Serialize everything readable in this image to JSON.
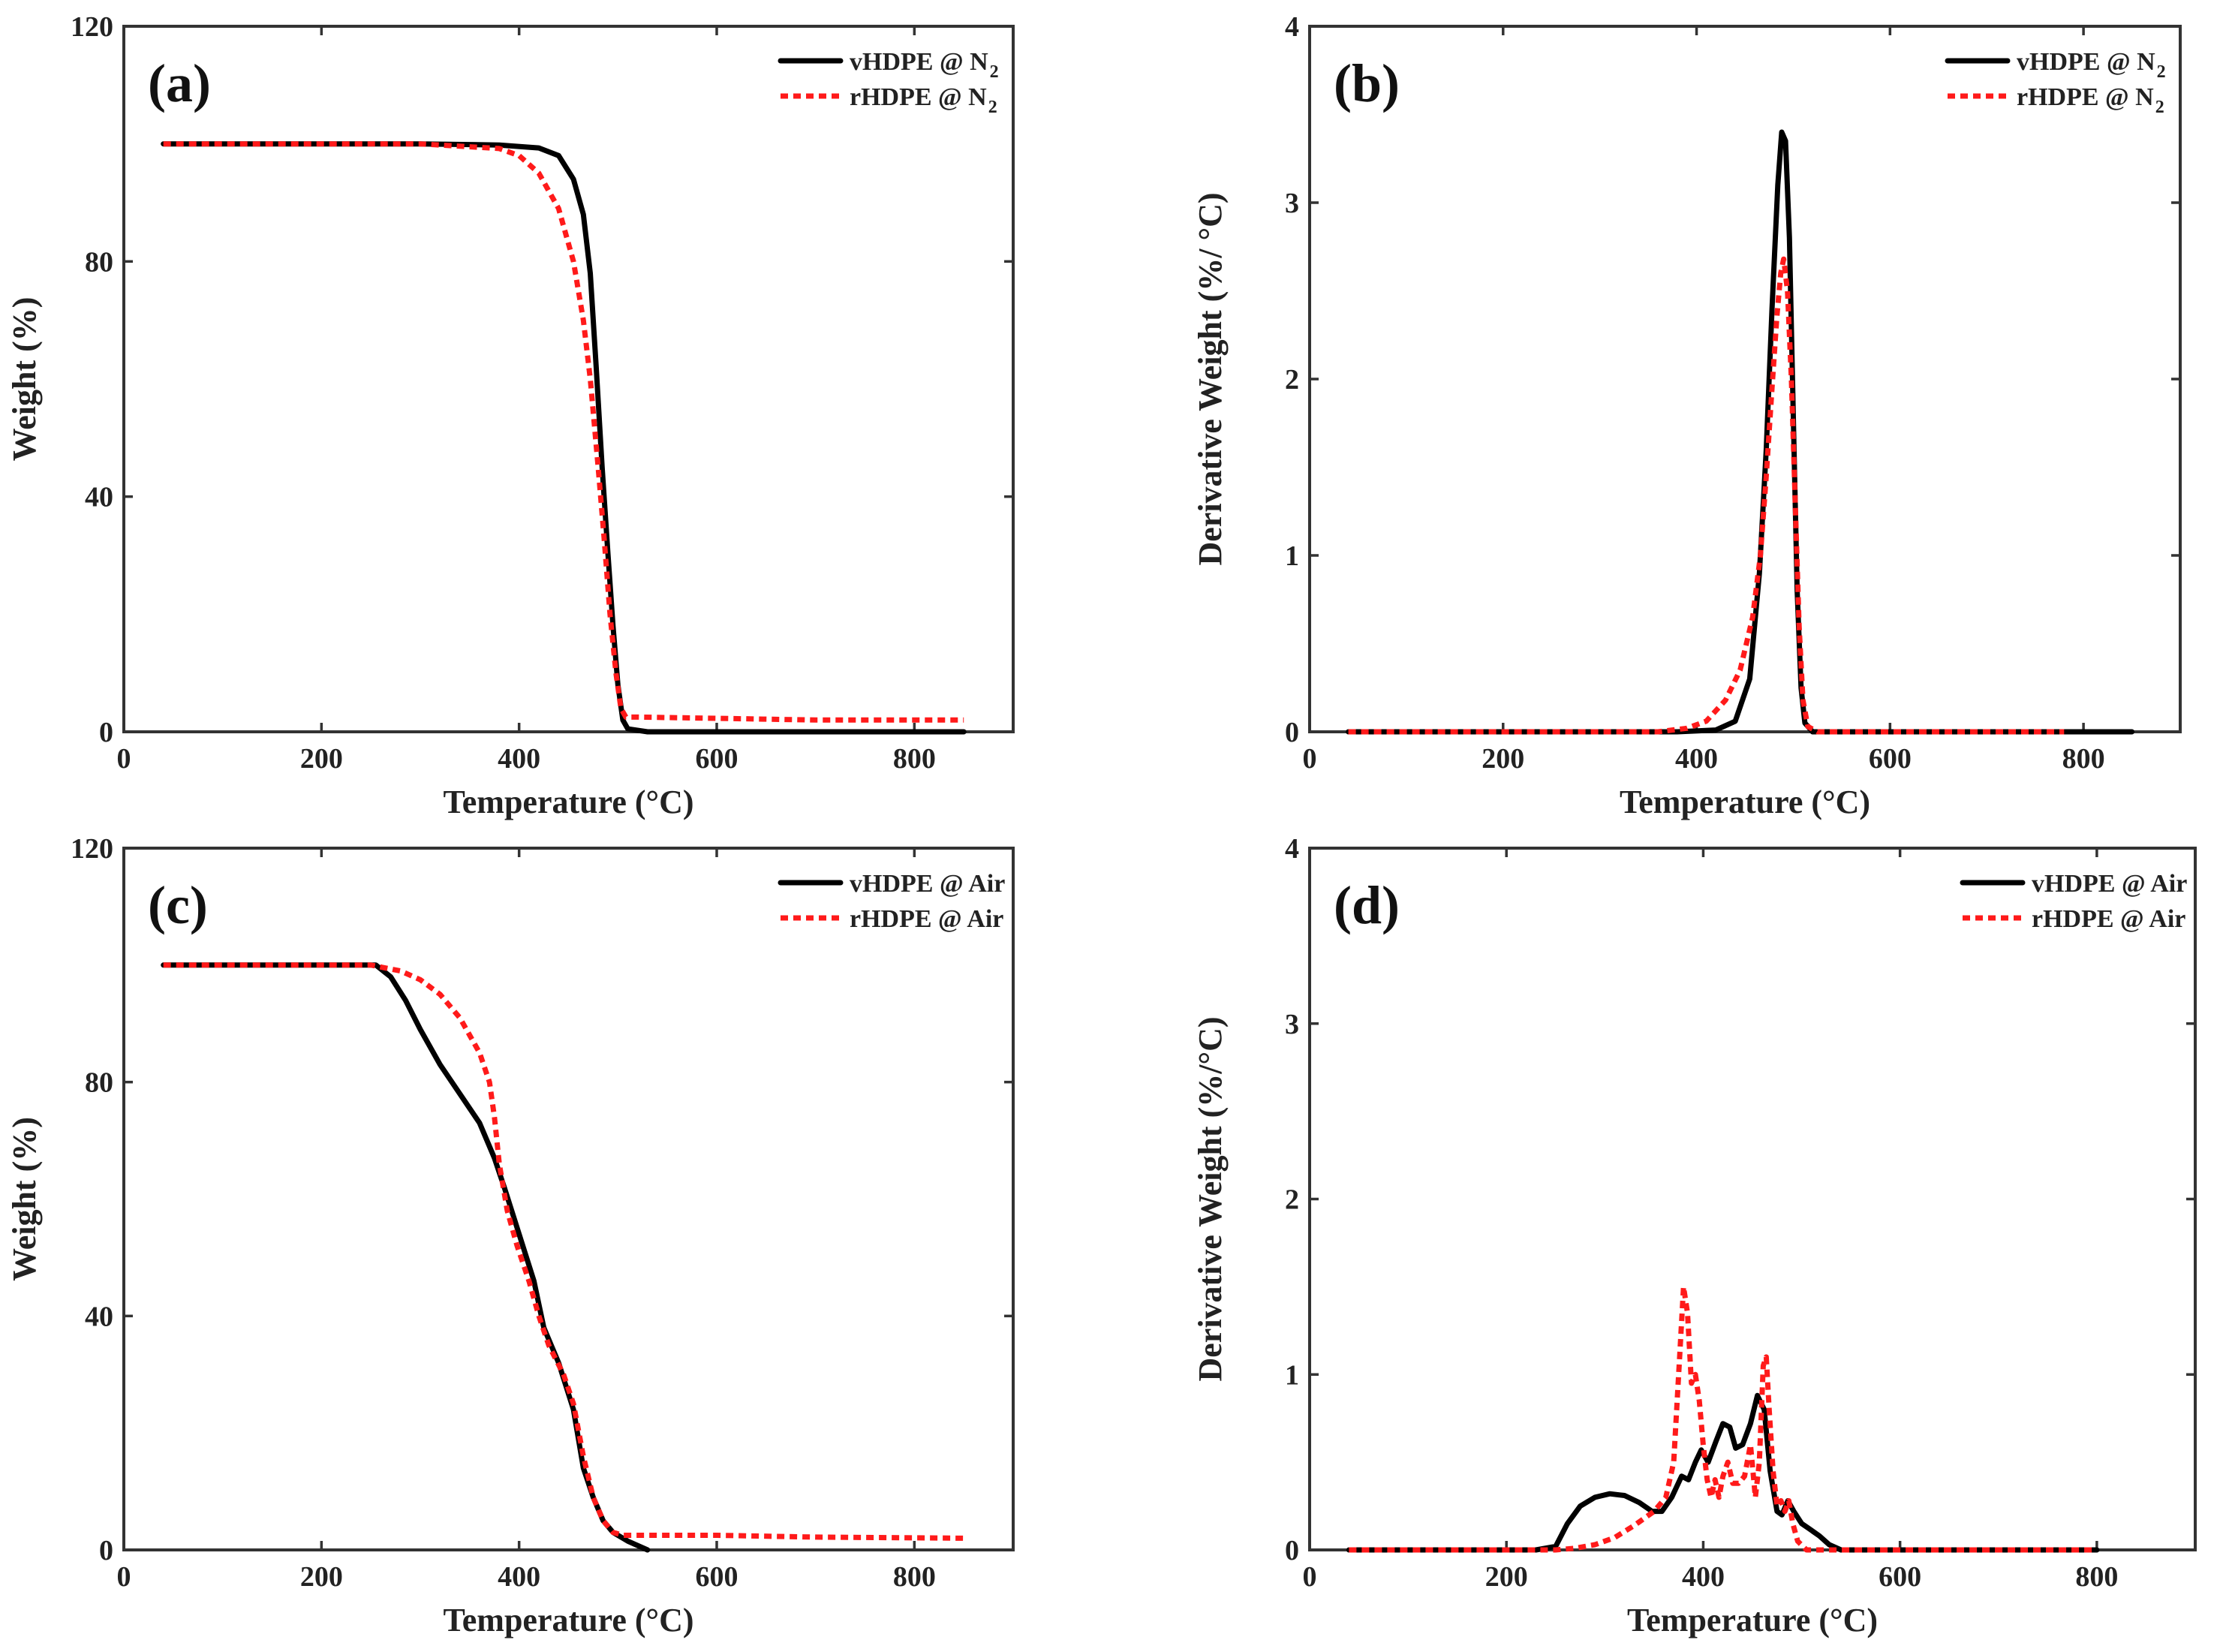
{
  "colors": {
    "series1": "#000000",
    "series2": "#ff1a1a",
    "axis": "#333333"
  },
  "chart_data": [
    {
      "id": "a",
      "type": "line",
      "panel_label": "(a)",
      "xlabel": "Temperature (°C)",
      "ylabel": "Weight (%)",
      "xlim": [
        0,
        900
      ],
      "ylim": [
        0,
        120
      ],
      "xticks": [
        0,
        200,
        400,
        600,
        800
      ],
      "yticks": [
        0,
        40,
        80,
        120
      ],
      "legend_position": "top-right",
      "series": [
        {
          "name": "vHDPE @ N",
          "name_sub": "2",
          "style": "solid",
          "points": [
            [
              40,
              100
            ],
            [
              100,
              100
            ],
            [
              200,
              100
            ],
            [
              300,
              100
            ],
            [
              380,
              99.8
            ],
            [
              420,
              99.3
            ],
            [
              440,
              98
            ],
            [
              455,
              94
            ],
            [
              465,
              88
            ],
            [
              472,
              78
            ],
            [
              478,
              62
            ],
            [
              484,
              45
            ],
            [
              490,
              30
            ],
            [
              495,
              18
            ],
            [
              500,
              8
            ],
            [
              505,
              2
            ],
            [
              510,
              0.5
            ],
            [
              530,
              0
            ],
            [
              850,
              0
            ]
          ]
        },
        {
          "name": "rHDPE @ N",
          "name_sub": "2",
          "style": "dotted",
          "points": [
            [
              40,
              100
            ],
            [
              100,
              100
            ],
            [
              200,
              100
            ],
            [
              300,
              100
            ],
            [
              380,
              99.2
            ],
            [
              400,
              98
            ],
            [
              420,
              95
            ],
            [
              440,
              89
            ],
            [
              455,
              80
            ],
            [
              465,
              70
            ],
            [
              472,
              60
            ],
            [
              480,
              45
            ],
            [
              486,
              33
            ],
            [
              492,
              20
            ],
            [
              498,
              10
            ],
            [
              503,
              4
            ],
            [
              508,
              2.5
            ],
            [
              520,
              2.5
            ],
            [
              600,
              2.3
            ],
            [
              700,
              2
            ],
            [
              850,
              2
            ]
          ]
        }
      ]
    },
    {
      "id": "b",
      "type": "line",
      "panel_label": "(b)",
      "xlabel": "Temperature (°C)",
      "ylabel": "Derivative Weight (%/ °C)",
      "xlim": [
        0,
        900
      ],
      "ylim": [
        0,
        4
      ],
      "xticks": [
        0,
        200,
        400,
        600,
        800
      ],
      "yticks": [
        0,
        1,
        2,
        3,
        4
      ],
      "legend_position": "top-right",
      "series": [
        {
          "name": "vHDPE @ N",
          "name_sub": "2",
          "style": "solid",
          "points": [
            [
              40,
              0
            ],
            [
              380,
              0
            ],
            [
              420,
              0.01
            ],
            [
              440,
              0.06
            ],
            [
              455,
              0.3
            ],
            [
              465,
              0.9
            ],
            [
              472,
              1.6
            ],
            [
              478,
              2.4
            ],
            [
              484,
              3.1
            ],
            [
              488,
              3.4
            ],
            [
              492,
              3.35
            ],
            [
              496,
              2.8
            ],
            [
              500,
              1.8
            ],
            [
              504,
              0.8
            ],
            [
              508,
              0.25
            ],
            [
              512,
              0.05
            ],
            [
              520,
              0
            ],
            [
              850,
              0
            ]
          ]
        },
        {
          "name": "rHDPE @ N",
          "name_sub": "2",
          "style": "dotted",
          "points": [
            [
              40,
              0
            ],
            [
              360,
              0
            ],
            [
              390,
              0.02
            ],
            [
              410,
              0.06
            ],
            [
              430,
              0.18
            ],
            [
              445,
              0.35
            ],
            [
              458,
              0.65
            ],
            [
              466,
              1.0
            ],
            [
              472,
              1.45
            ],
            [
              478,
              1.95
            ],
            [
              483,
              2.35
            ],
            [
              487,
              2.6
            ],
            [
              490,
              2.68
            ],
            [
              494,
              2.5
            ],
            [
              498,
              2.0
            ],
            [
              502,
              1.3
            ],
            [
              506,
              0.6
            ],
            [
              510,
              0.18
            ],
            [
              515,
              0.03
            ],
            [
              525,
              0
            ],
            [
              780,
              0
            ]
          ]
        }
      ]
    },
    {
      "id": "c",
      "type": "line",
      "panel_label": "(c)",
      "xlabel": "Temperature (°C)",
      "ylabel": "Weight (%)",
      "xlim": [
        0,
        900
      ],
      "ylim": [
        0,
        120
      ],
      "xticks": [
        0,
        200,
        400,
        600,
        800
      ],
      "yticks": [
        0,
        40,
        80,
        120
      ],
      "legend_position": "top-right",
      "series": [
        {
          "name": "vHDPE @ Air",
          "name_sub": "",
          "style": "solid",
          "points": [
            [
              40,
              100
            ],
            [
              150,
              100
            ],
            [
              240,
              100
            ],
            [
              255,
              100
            ],
            [
              270,
              98
            ],
            [
              285,
              94
            ],
            [
              300,
              89
            ],
            [
              320,
              83
            ],
            [
              340,
              78
            ],
            [
              360,
              73
            ],
            [
              375,
              67
            ],
            [
              385,
              62
            ],
            [
              400,
              54
            ],
            [
              415,
              46
            ],
            [
              425,
              38
            ],
            [
              440,
              32
            ],
            [
              455,
              24
            ],
            [
              465,
              14
            ],
            [
              475,
              9
            ],
            [
              485,
              5
            ],
            [
              495,
              3
            ],
            [
              510,
              1.5
            ],
            [
              530,
              0
            ]
          ]
        },
        {
          "name": "rHDPE @ Air",
          "name_sub": "",
          "style": "dotted",
          "points": [
            [
              40,
              100
            ],
            [
              150,
              100
            ],
            [
              250,
              100
            ],
            [
              280,
              99
            ],
            [
              300,
              97.5
            ],
            [
              320,
              95
            ],
            [
              340,
              91
            ],
            [
              360,
              85
            ],
            [
              370,
              80
            ],
            [
              375,
              74
            ],
            [
              380,
              66
            ],
            [
              388,
              58
            ],
            [
              398,
              52
            ],
            [
              410,
              46
            ],
            [
              420,
              40
            ],
            [
              430,
              35
            ],
            [
              445,
              30
            ],
            [
              455,
              25
            ],
            [
              465,
              16
            ],
            [
              475,
              9
            ],
            [
              485,
              5
            ],
            [
              495,
              3
            ],
            [
              505,
              2.5
            ],
            [
              600,
              2.5
            ],
            [
              700,
              2.2
            ],
            [
              850,
              2
            ]
          ]
        }
      ]
    },
    {
      "id": "d",
      "type": "line",
      "panel_label": "(d)",
      "xlabel": "Temperature (°C)",
      "ylabel": "Derivative Weight (%/°C)",
      "xlim": [
        0,
        900
      ],
      "ylim": [
        0,
        4
      ],
      "xticks": [
        0,
        200,
        400,
        600,
        800
      ],
      "yticks": [
        0,
        1,
        2,
        3,
        4
      ],
      "legend_position": "top-right",
      "series": [
        {
          "name": "vHDPE @ Air",
          "name_sub": "",
          "style": "solid",
          "points": [
            [
              40,
              0
            ],
            [
              230,
              0
            ],
            [
              250,
              0.02
            ],
            [
              262,
              0.15
            ],
            [
              275,
              0.25
            ],
            [
              290,
              0.3
            ],
            [
              305,
              0.32
            ],
            [
              320,
              0.31
            ],
            [
              335,
              0.27
            ],
            [
              348,
              0.22
            ],
            [
              358,
              0.22
            ],
            [
              368,
              0.3
            ],
            [
              378,
              0.42
            ],
            [
              385,
              0.4
            ],
            [
              392,
              0.5
            ],
            [
              398,
              0.57
            ],
            [
              405,
              0.5
            ],
            [
              413,
              0.62
            ],
            [
              420,
              0.72
            ],
            [
              427,
              0.7
            ],
            [
              433,
              0.58
            ],
            [
              440,
              0.6
            ],
            [
              448,
              0.72
            ],
            [
              455,
              0.88
            ],
            [
              462,
              0.8
            ],
            [
              468,
              0.45
            ],
            [
              475,
              0.22
            ],
            [
              480,
              0.2
            ],
            [
              486,
              0.28
            ],
            [
              492,
              0.22
            ],
            [
              500,
              0.15
            ],
            [
              508,
              0.12
            ],
            [
              518,
              0.08
            ],
            [
              528,
              0.03
            ],
            [
              540,
              0
            ],
            [
              800,
              0
            ]
          ]
        },
        {
          "name": "rHDPE @ Air",
          "name_sub": "",
          "style": "dotted",
          "points": [
            [
              40,
              0
            ],
            [
              250,
              0
            ],
            [
              270,
              0.01
            ],
            [
              290,
              0.03
            ],
            [
              310,
              0.07
            ],
            [
              330,
              0.14
            ],
            [
              350,
              0.22
            ],
            [
              362,
              0.3
            ],
            [
              370,
              0.5
            ],
            [
              376,
              1.1
            ],
            [
              380,
              1.5
            ],
            [
              384,
              1.35
            ],
            [
              388,
              0.95
            ],
            [
              392,
              1.0
            ],
            [
              396,
              0.85
            ],
            [
              400,
              0.6
            ],
            [
              404,
              0.4
            ],
            [
              408,
              0.3
            ],
            [
              412,
              0.4
            ],
            [
              416,
              0.3
            ],
            [
              420,
              0.42
            ],
            [
              425,
              0.5
            ],
            [
              430,
              0.38
            ],
            [
              436,
              0.38
            ],
            [
              442,
              0.42
            ],
            [
              448,
              0.6
            ],
            [
              453,
              0.3
            ],
            [
              457,
              0.5
            ],
            [
              461,
              1.05
            ],
            [
              464,
              1.1
            ],
            [
              467,
              0.8
            ],
            [
              471,
              0.45
            ],
            [
              475,
              0.25
            ],
            [
              479,
              0.28
            ],
            [
              483,
              0.22
            ],
            [
              487,
              0.28
            ],
            [
              491,
              0.15
            ],
            [
              496,
              0.05
            ],
            [
              505,
              0
            ],
            [
              800,
              0
            ]
          ]
        }
      ]
    }
  ]
}
